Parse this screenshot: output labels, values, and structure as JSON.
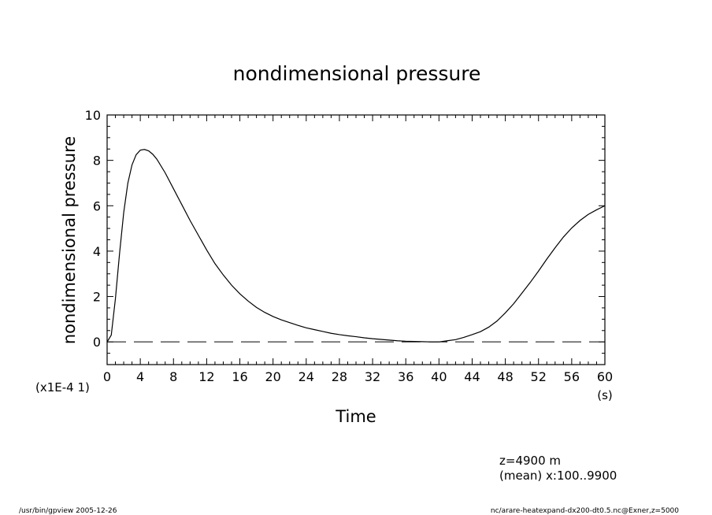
{
  "chart_data": {
    "type": "line",
    "title": "nondimensional pressure",
    "xlabel": "Time",
    "x_unit": "(s)",
    "ylabel": "nondimensional pressure",
    "y_scale_note": "(x1E-4 1)",
    "xlim": [
      0,
      60
    ],
    "ylim": [
      -1,
      10
    ],
    "x_ticks": [
      "0",
      "4",
      "8",
      "12",
      "16",
      "20",
      "24",
      "28",
      "32",
      "36",
      "40",
      "44",
      "48",
      "52",
      "56",
      "60"
    ],
    "y_ticks": [
      "0",
      "2",
      "4",
      "6",
      "8",
      "10"
    ],
    "reference_line": {
      "y": 0,
      "style": "dashed"
    },
    "series": [
      {
        "x": [
          0,
          0.5,
          1,
          1.5,
          2,
          2.5,
          3,
          3.5,
          4,
          4.5,
          5,
          5.5,
          6,
          7,
          8,
          9,
          10,
          11,
          12,
          13,
          14,
          15,
          16,
          17,
          18,
          19,
          20,
          21,
          22,
          23,
          24,
          25,
          26,
          27,
          28,
          29,
          30,
          31,
          32,
          33,
          34,
          35,
          36,
          37,
          38,
          39,
          40,
          41,
          42,
          43,
          44,
          45,
          46,
          47,
          48,
          49,
          50,
          51,
          52,
          53,
          54,
          55,
          56,
          57,
          58,
          59,
          60
        ],
        "y": [
          0.0,
          0.3,
          1.9,
          3.9,
          5.7,
          7.0,
          7.8,
          8.25,
          8.45,
          8.48,
          8.42,
          8.27,
          8.05,
          7.45,
          6.75,
          6.05,
          5.35,
          4.7,
          4.05,
          3.45,
          2.95,
          2.5,
          2.12,
          1.8,
          1.52,
          1.3,
          1.12,
          0.97,
          0.85,
          0.73,
          0.62,
          0.54,
          0.46,
          0.38,
          0.32,
          0.27,
          0.23,
          0.18,
          0.14,
          0.11,
          0.08,
          0.05,
          0.03,
          0.02,
          0.01,
          0.0,
          0.0,
          0.05,
          0.1,
          0.2,
          0.32,
          0.45,
          0.65,
          0.92,
          1.28,
          1.68,
          2.15,
          2.62,
          3.12,
          3.65,
          4.15,
          4.62,
          5.02,
          5.35,
          5.62,
          5.82,
          6.0
        ]
      }
    ]
  },
  "annotations": {
    "level": "z=4900  m",
    "mean": "(mean) x:100..9900"
  },
  "footer": {
    "left": "/usr/bin/gpview  2005-12-26",
    "right": "nc/arare-heatexpand-dx200-dt0.5.nc@Exner,z=5000"
  }
}
